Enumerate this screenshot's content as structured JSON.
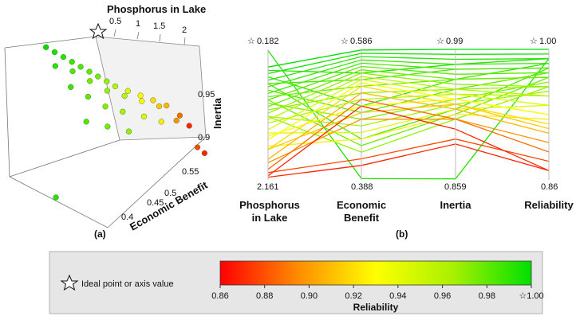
{
  "panel_a": {
    "caption": "(a)",
    "axis_x_label": "Phosphorus in Lake",
    "axis_x_ticks": [
      "0.5",
      "1",
      "1.5",
      "2"
    ],
    "axis_z_label": "Inertia",
    "axis_z_ticks": [
      "0.95",
      "0.9"
    ],
    "axis_y_label": "Economic Benefit",
    "axis_y_ticks": [
      "0.55",
      "0.5",
      "0.45",
      "0.4"
    ]
  },
  "panel_b": {
    "caption": "(b)",
    "axes": [
      {
        "label_line1": "Phosphorus",
        "label_line2": "in Lake",
        "top": "0.182",
        "bottom": "2.161"
      },
      {
        "label_line1": "Economic",
        "label_line2": "Benefit",
        "top": "0.586",
        "bottom": "0.388"
      },
      {
        "label_line1": "Inertia",
        "label_line2": "",
        "top": "0.99",
        "bottom": "0.859"
      },
      {
        "label_line1": "Reliability",
        "label_line2": "",
        "top": "1.00",
        "bottom": "0.86"
      }
    ]
  },
  "legend": {
    "ideal_label": "Ideal point or axis value",
    "colorbar_title": "Reliability",
    "colorbar_ticks": [
      "0.86",
      "0.88",
      "0.90",
      "0.92",
      "0.94",
      "0.96",
      "0.98",
      "1.00"
    ]
  },
  "colors": {
    "low": "#ff0000",
    "mid": "#ffff00",
    "high": "#00e000",
    "legend_bg": "#e6e6e6"
  },
  "chart_data": [
    {
      "type": "scatter",
      "description_axes": [
        "Phosphorus in Lake",
        "Economic Benefit",
        "Inertia"
      ],
      "color_by": "Reliability",
      "xlim": [
        0.18,
        2.2
      ],
      "ylim": [
        0.38,
        0.59
      ],
      "zlim": [
        0.86,
        0.99
      ],
      "points": [
        {
          "p": 0.45,
          "e": 0.585,
          "i": 0.99,
          "r": 1.0
        },
        {
          "p": 0.55,
          "e": 0.58,
          "i": 0.985,
          "r": 0.995
        },
        {
          "p": 0.65,
          "e": 0.575,
          "i": 0.98,
          "r": 0.99
        },
        {
          "p": 0.75,
          "e": 0.57,
          "i": 0.975,
          "r": 0.985
        },
        {
          "p": 0.85,
          "e": 0.565,
          "i": 0.97,
          "r": 0.98
        },
        {
          "p": 0.95,
          "e": 0.56,
          "i": 0.965,
          "r": 0.975
        },
        {
          "p": 1.05,
          "e": 0.555,
          "i": 0.96,
          "r": 0.97
        },
        {
          "p": 1.15,
          "e": 0.55,
          "i": 0.955,
          "r": 0.96
        },
        {
          "p": 1.25,
          "e": 0.545,
          "i": 0.95,
          "r": 0.95
        },
        {
          "p": 1.4,
          "e": 0.54,
          "i": 0.945,
          "r": 0.94
        },
        {
          "p": 1.55,
          "e": 0.535,
          "i": 0.94,
          "r": 0.93
        },
        {
          "p": 1.7,
          "e": 0.53,
          "i": 0.935,
          "r": 0.92
        },
        {
          "p": 1.85,
          "e": 0.52,
          "i": 0.93,
          "r": 0.91
        },
        {
          "p": 2.0,
          "e": 0.51,
          "i": 0.92,
          "r": 0.89
        },
        {
          "p": 2.1,
          "e": 0.5,
          "i": 0.91,
          "r": 0.87
        },
        {
          "p": 0.5,
          "e": 0.55,
          "i": 0.975,
          "r": 0.99
        },
        {
          "p": 0.7,
          "e": 0.54,
          "i": 0.97,
          "r": 0.98
        },
        {
          "p": 0.9,
          "e": 0.53,
          "i": 0.96,
          "r": 0.97
        },
        {
          "p": 1.1,
          "e": 0.52,
          "i": 0.95,
          "r": 0.96
        },
        {
          "p": 1.3,
          "e": 0.51,
          "i": 0.945,
          "r": 0.95
        },
        {
          "p": 1.5,
          "e": 0.5,
          "i": 0.94,
          "r": 0.93
        },
        {
          "p": 1.7,
          "e": 0.49,
          "i": 0.935,
          "r": 0.915
        },
        {
          "p": 1.9,
          "e": 0.48,
          "i": 0.92,
          "r": 0.9
        },
        {
          "p": 0.6,
          "e": 0.5,
          "i": 0.96,
          "r": 0.985
        },
        {
          "p": 0.8,
          "e": 0.49,
          "i": 0.95,
          "r": 0.975
        },
        {
          "p": 1.0,
          "e": 0.48,
          "i": 0.94,
          "r": 0.965
        },
        {
          "p": 1.2,
          "e": 0.47,
          "i": 0.935,
          "r": 0.955
        },
        {
          "p": 1.45,
          "e": 0.46,
          "i": 0.93,
          "r": 0.94
        },
        {
          "p": 1.65,
          "e": 0.45,
          "i": 0.925,
          "r": 0.925
        },
        {
          "p": 0.7,
          "e": 0.45,
          "i": 0.93,
          "r": 0.98
        },
        {
          "p": 0.95,
          "e": 0.44,
          "i": 0.925,
          "r": 0.97
        },
        {
          "p": 1.2,
          "e": 0.43,
          "i": 0.92,
          "r": 0.96
        },
        {
          "p": 2.05,
          "e": 0.42,
          "i": 0.9,
          "r": 0.88
        },
        {
          "p": 2.12,
          "e": 0.41,
          "i": 0.895,
          "r": 0.87
        },
        {
          "p": 0.2,
          "e": 0.39,
          "i": 0.86,
          "r": 0.99
        }
      ]
    },
    {
      "type": "parallel-coordinates",
      "axes": [
        "Phosphorus in Lake",
        "Economic Benefit",
        "Inertia",
        "Reliability"
      ],
      "axis_ranges": [
        [
          2.161,
          0.182
        ],
        [
          0.388,
          0.586
        ],
        [
          0.859,
          0.99
        ],
        [
          0.86,
          1.0
        ]
      ],
      "ideal_marker_on_top": true,
      "color_by": "Reliability",
      "colorbar": {
        "min": 0.86,
        "max": 1.0,
        "colors": [
          "#ff0000",
          "#ffff00",
          "#00e000"
        ]
      }
    }
  ]
}
